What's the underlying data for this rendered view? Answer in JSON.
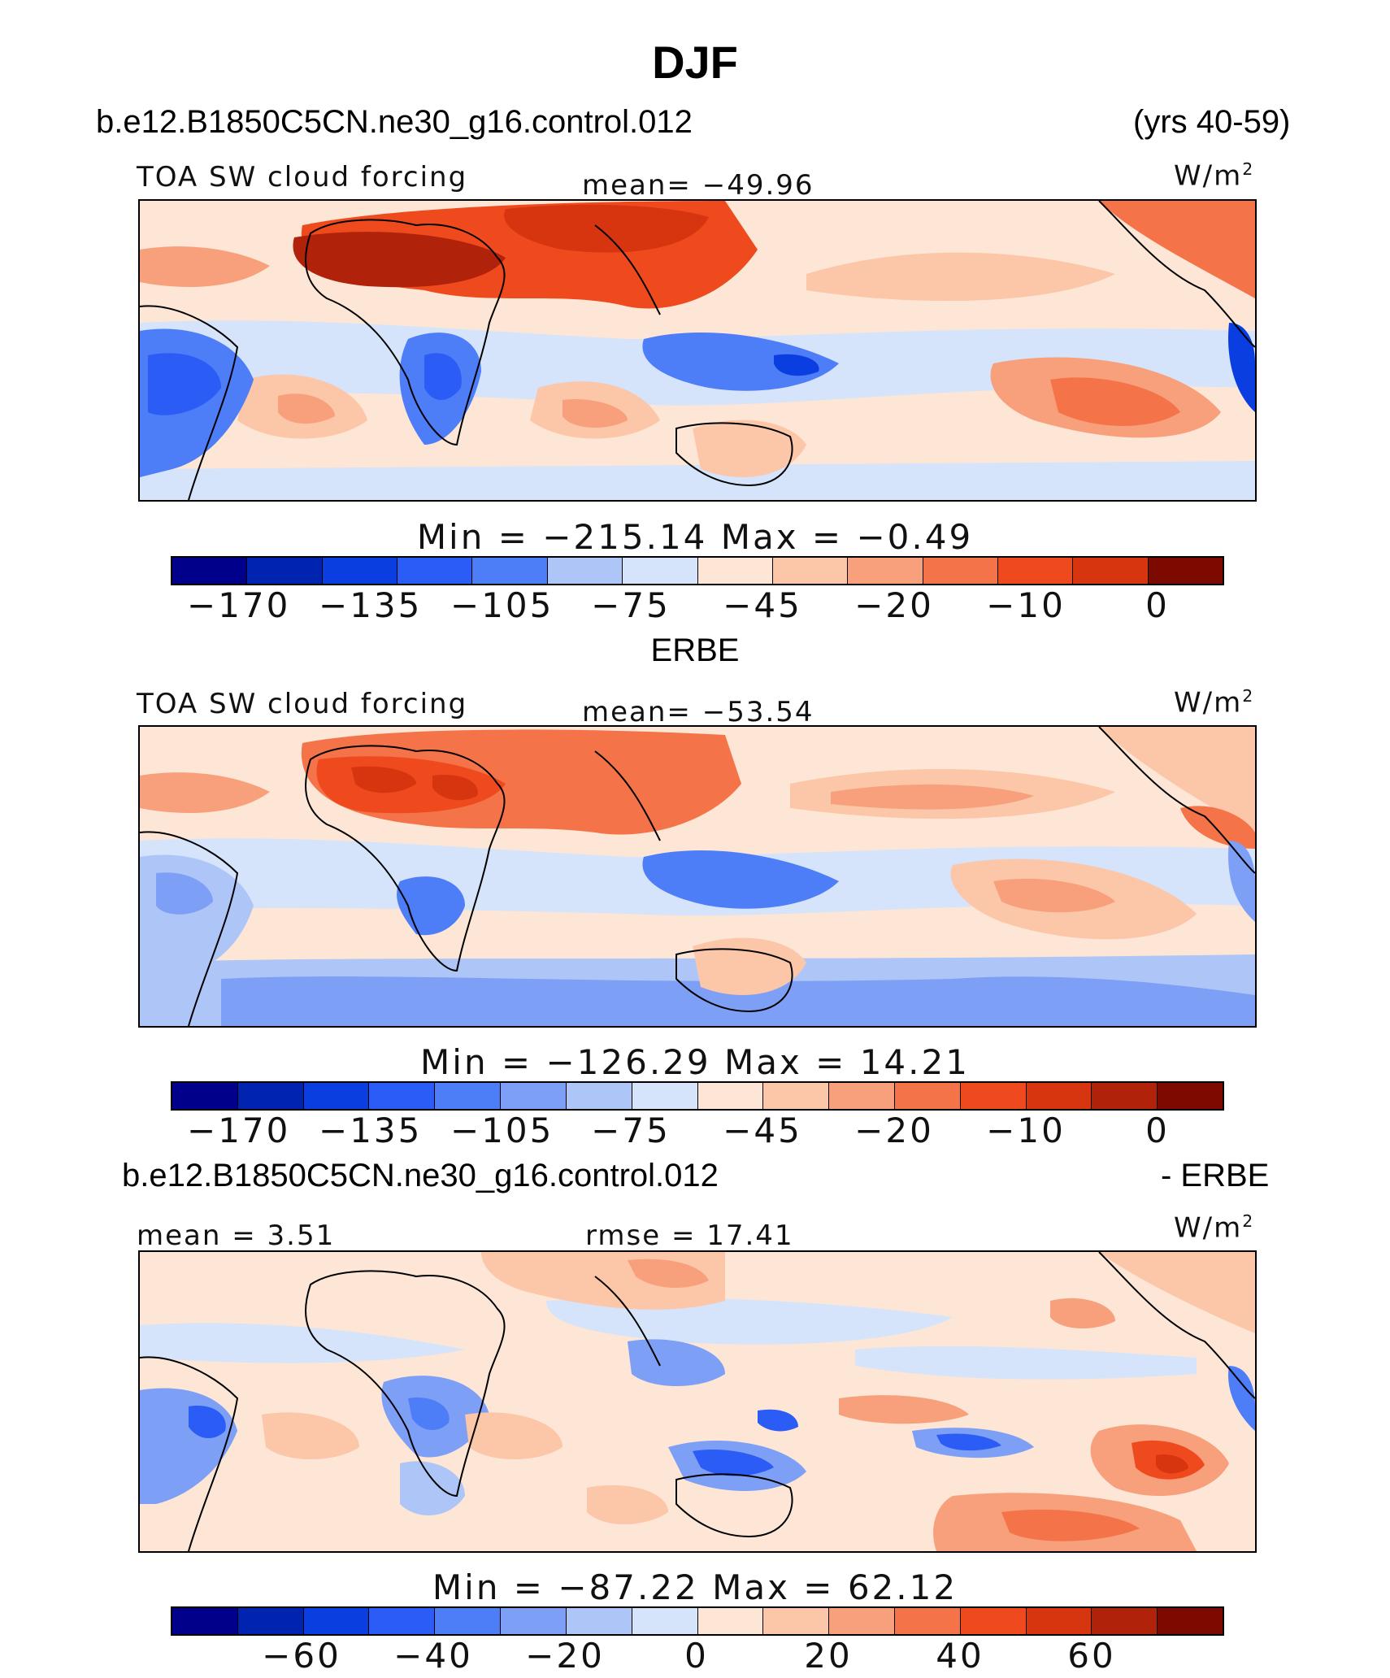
{
  "title": "DJF",
  "colors": [
    "#00008b",
    "#0024b0",
    "#0a3ee0",
    "#2b5cf5",
    "#4d7df7",
    "#7d9ff5",
    "#aec6f7",
    "#d5e4fa",
    "#fde6d6",
    "#fcc6a8",
    "#f7a07b",
    "#f47348",
    "#ef4a1e",
    "#d63510",
    "#b0220a",
    "#7d0a00"
  ],
  "panels": [
    {
      "case_label": "b.e12.B1850C5CN.ne30_g16.control.012",
      "period": "(yrs 40-59)",
      "variable": "TOA SW cloud forcing",
      "stat": "mean=  −49.96",
      "units_base": "W/m",
      "units_exp": "2",
      "minmax": "Min  =  −215.14  Max  =    −0.49",
      "ticks": [
        "−170",
        "−135",
        "−105",
        "−75",
        "−45",
        "−20",
        "−10",
        "0"
      ]
    },
    {
      "case_label": "ERBE",
      "variable": "TOA SW cloud forcing",
      "stat": "mean=  −53.54",
      "units_base": "W/m",
      "units_exp": "2",
      "minmax": "Min  =  −126.29  Max  =    14.21",
      "ticks": [
        "−170",
        "−135",
        "−105",
        "−75",
        "−45",
        "−20",
        "−10",
        "0"
      ]
    },
    {
      "case_label": "b.e12.B1850C5CN.ne30_g16.control.012",
      "diff_label": "- ERBE",
      "stat_left": "mean  =    3.51",
      "stat": "rmse  =    17.41",
      "units_base": "W/m",
      "units_exp": "2",
      "minmax": "Min  =  −87.22  Max  =    62.12",
      "ticks": [
        "−60",
        "−40",
        "−20",
        "0",
        "20",
        "40",
        "60"
      ]
    }
  ]
}
